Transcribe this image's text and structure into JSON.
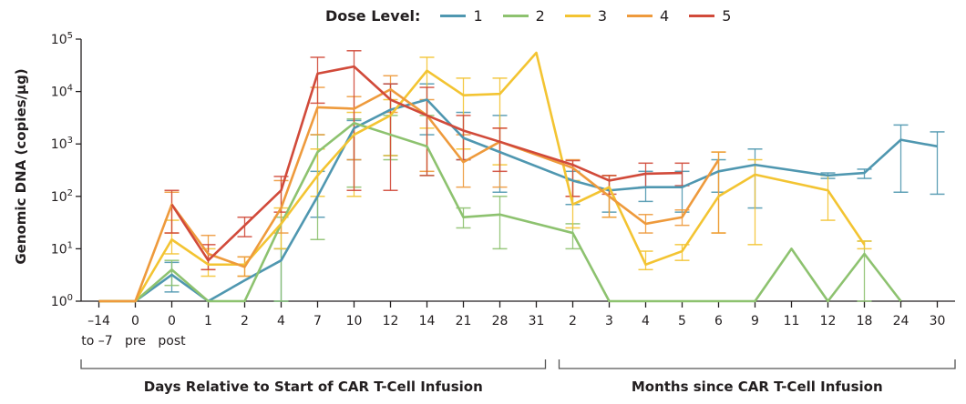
{
  "chart_data": {
    "type": "line",
    "title": "",
    "ylabel": "Genomic DNA (copies/µg)",
    "yscale": "log",
    "ylim": [
      1,
      100000
    ],
    "yticks": [
      {
        "value": 1,
        "base": "10",
        "exp": "0"
      },
      {
        "value": 10,
        "base": "10",
        "exp": "1"
      },
      {
        "value": 100,
        "base": "10",
        "exp": "2"
      },
      {
        "value": 1000,
        "base": "10",
        "exp": "3"
      },
      {
        "value": 10000,
        "base": "10",
        "exp": "4"
      },
      {
        "value": 100000,
        "base": "10",
        "exp": "5"
      }
    ],
    "legend": {
      "title": "Dose Level:",
      "placement": "top-center"
    },
    "grid": false,
    "categories": [
      "-14",
      "0",
      "0",
      "1",
      "2",
      "4",
      "7",
      "10",
      "12",
      "14",
      "21",
      "28",
      "31",
      "2",
      "3",
      "4",
      "5",
      "6",
      "9",
      "11",
      "12",
      "18",
      "24",
      "30"
    ],
    "category_sublabels": [
      "to –7",
      "pre",
      "post"
    ],
    "sections": [
      {
        "label": "Days Relative to Start of CAR T-Cell Infusion",
        "from": 0,
        "to": 12
      },
      {
        "label": "Months since CAR T-Cell Infusion",
        "from": 13,
        "to": 23
      }
    ],
    "series": [
      {
        "name": "1",
        "color": "#4f97b0",
        "values": [
          1,
          1,
          3.2,
          1,
          2.5,
          6,
          100,
          2000,
          4500,
          7000,
          1300,
          700,
          null,
          200,
          130,
          150,
          150,
          300,
          400,
          null,
          250,
          280,
          1200,
          900
        ],
        "errors": [
          null,
          null,
          [
            1.5,
            5.5
          ],
          null,
          null,
          [
            1,
            10
          ],
          [
            40,
            300
          ],
          [
            500,
            2800
          ],
          [
            600,
            14000
          ],
          [
            1500,
            14000
          ],
          [
            500,
            4000
          ],
          [
            120,
            3500
          ],
          null,
          [
            70,
            300
          ],
          [
            50,
            250
          ],
          [
            80,
            300
          ],
          [
            50,
            300
          ],
          [
            120,
            500
          ],
          [
            60,
            800
          ],
          null,
          [
            220,
            280
          ],
          [
            220,
            330
          ],
          [
            120,
            2300
          ],
          [
            110,
            1700
          ]
        ]
      },
      {
        "name": "2",
        "color": "#8dc26f",
        "values": [
          1,
          1,
          4,
          1,
          1,
          30,
          700,
          2500,
          1500,
          900,
          40,
          45,
          null,
          20,
          1,
          1,
          1,
          1,
          1,
          10,
          1,
          8,
          1,
          null
        ],
        "errors": [
          null,
          null,
          [
            2,
            6
          ],
          null,
          null,
          [
            1,
            40
          ],
          [
            15,
            1500
          ],
          [
            150,
            3000
          ],
          [
            500,
            3500
          ],
          [
            250,
            3500
          ],
          [
            25,
            60
          ],
          [
            10,
            100
          ],
          null,
          [
            10,
            30
          ],
          null,
          null,
          null,
          null,
          null,
          null,
          null,
          [
            1,
            14
          ],
          null,
          null
        ]
      },
      {
        "name": "3",
        "color": "#f3c432",
        "values": [
          1,
          1,
          15,
          5,
          5,
          30,
          250,
          1500,
          3500,
          25000,
          8500,
          9000,
          55000,
          70,
          150,
          5,
          9,
          100,
          260,
          null,
          130,
          12,
          null,
          null
        ],
        "errors": [
          null,
          null,
          [
            8,
            35
          ],
          [
            3,
            10
          ],
          [
            3,
            7
          ],
          [
            10,
            60
          ],
          [
            100,
            800
          ],
          [
            100,
            4000
          ],
          [
            600,
            7000
          ],
          [
            2000,
            45000
          ],
          [
            800,
            18000
          ],
          [
            400,
            18000
          ],
          null,
          [
            25,
            200
          ],
          [
            40,
            250
          ],
          [
            4,
            9
          ],
          [
            6,
            12
          ],
          [
            20,
            700
          ],
          [
            12,
            500
          ],
          null,
          [
            35,
            250
          ],
          [
            10,
            14
          ],
          null,
          null
        ]
      },
      {
        "name": "4",
        "color": "#ee9a3c",
        "values": [
          1,
          1,
          70,
          8,
          4.5,
          60,
          5000,
          4700,
          11000,
          3500,
          450,
          1100,
          null,
          350,
          100,
          30,
          40,
          500,
          null,
          null,
          null,
          null,
          null,
          null
        ],
        "errors": [
          null,
          null,
          [
            20,
            120
          ],
          [
            4,
            18
          ],
          [
            3,
            7
          ],
          [
            20,
            200
          ],
          [
            1500,
            12000
          ],
          [
            500,
            8000
          ],
          [
            4000,
            20000
          ],
          [
            300,
            7000
          ],
          [
            150,
            1500
          ],
          [
            150,
            2000
          ],
          null,
          [
            100,
            500
          ],
          [
            40,
            250
          ],
          [
            20,
            45
          ],
          [
            28,
            55
          ],
          [
            20,
            700
          ],
          null,
          null,
          null,
          null,
          null,
          null
        ]
      },
      {
        "name": "5",
        "color": "#d14a3a",
        "values": [
          null,
          null,
          70,
          6,
          null,
          130,
          22000,
          30000,
          7000,
          3500,
          1800,
          1100,
          null,
          400,
          200,
          270,
          280,
          null,
          null,
          null,
          null,
          null,
          null,
          null
        ],
        "errors": [
          null,
          null,
          [
            20,
            130
          ],
          [
            4,
            12
          ],
          [
            17,
            40
          ],
          [
            50,
            240
          ],
          [
            6000,
            45000
          ],
          [
            130,
            60000
          ],
          [
            130,
            14000
          ],
          [
            250,
            12000
          ],
          [
            500,
            3500
          ],
          [
            300,
            2000
          ],
          null,
          [
            100,
            480
          ],
          [
            110,
            250
          ],
          [
            150,
            430
          ],
          [
            160,
            430
          ],
          null,
          null,
          null,
          null,
          null,
          null,
          null
        ]
      }
    ]
  }
}
